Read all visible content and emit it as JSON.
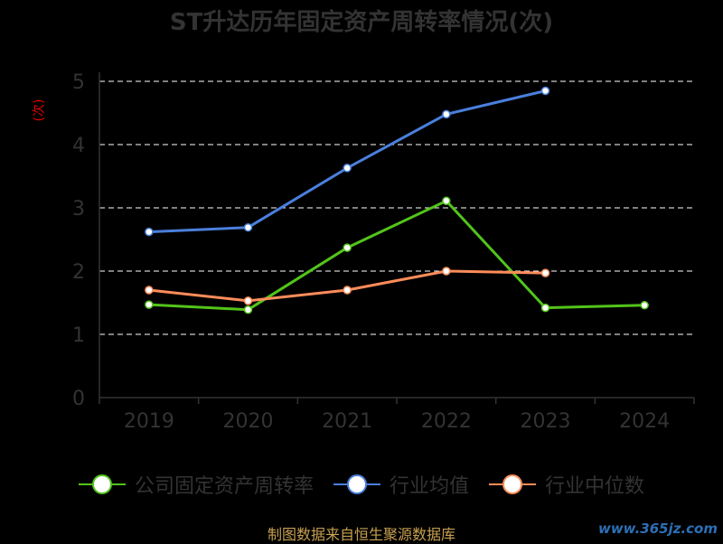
{
  "chart_data": {
    "type": "line",
    "title": "ST升达历年固定资产周转率情况(次)",
    "ylabel": "(次)",
    "categories": [
      "2019",
      "2020",
      "2021",
      "2022",
      "2023",
      "2024"
    ],
    "ylim": [
      0,
      5
    ],
    "yticks": [
      0,
      1,
      2,
      3,
      4,
      5
    ],
    "grid": true,
    "legend_position": "bottom",
    "series": [
      {
        "name": "公司固定资产周转率",
        "color": "#52c41a",
        "values": [
          1.47,
          1.39,
          2.37,
          3.11,
          1.42,
          1.46
        ]
      },
      {
        "name": "行业均值",
        "color": "#4a7fdc",
        "values": [
          2.62,
          2.69,
          3.63,
          4.48,
          4.85,
          null
        ]
      },
      {
        "name": "行业中位数",
        "color": "#ff8c5a",
        "values": [
          1.7,
          1.53,
          1.7,
          2.0,
          1.97,
          null
        ]
      }
    ]
  },
  "footer": {
    "source": "制图数据来自恒生聚源数据库",
    "watermark": "www.365jz.com"
  }
}
